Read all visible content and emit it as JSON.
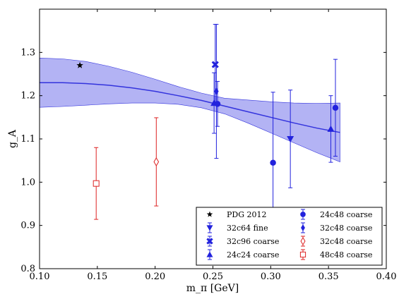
{
  "chart_data": {
    "type": "scatter",
    "xlabel": "m_π [GeV]",
    "ylabel": "g_A",
    "xlim": [
      0.1,
      0.4
    ],
    "ylim": [
      0.8,
      1.4
    ],
    "xticks": [
      "0.10",
      "0.15",
      "0.20",
      "0.25",
      "0.30",
      "0.35",
      "0.40"
    ],
    "yticks": [
      "0.8",
      "0.9",
      "1.0",
      "1.1",
      "1.2",
      "1.3"
    ],
    "grid": false,
    "legend_position": "bottom-right",
    "fit": {
      "x": [
        0.1,
        0.12,
        0.14,
        0.16,
        0.18,
        0.2,
        0.22,
        0.24,
        0.26,
        0.28,
        0.3,
        0.32,
        0.34,
        0.36
      ],
      "center": [
        1.23,
        1.23,
        1.228,
        1.224,
        1.218,
        1.21,
        1.2,
        1.189,
        1.176,
        1.163,
        1.15,
        1.137,
        1.125,
        1.115
      ],
      "lower": [
        1.173,
        1.175,
        1.178,
        1.181,
        1.183,
        1.183,
        1.18,
        1.172,
        1.158,
        1.137,
        1.114,
        1.091,
        1.068,
        1.047
      ],
      "upper": [
        1.287,
        1.285,
        1.279,
        1.268,
        1.254,
        1.238,
        1.221,
        1.206,
        1.194,
        1.19,
        1.186,
        1.183,
        1.182,
        1.183
      ],
      "color": "#3333dd",
      "band_color": "#9a9af0"
    },
    "series": [
      {
        "name": "PDG 2012",
        "marker": "star",
        "color": "#000000",
        "points": [
          {
            "x": 0.1349,
            "y": 1.2701,
            "yerr": 0
          }
        ]
      },
      {
        "name": "32c64 fine",
        "marker": "triangle-down",
        "color": "#2222dd",
        "points": [
          {
            "x": 0.317,
            "y": 1.1,
            "yerr": 0.113
          }
        ]
      },
      {
        "name": "32c96 coarse",
        "marker": "x",
        "color": "#2222dd",
        "points": [
          {
            "x": 0.252,
            "y": 1.272,
            "yerr": 0.093
          }
        ]
      },
      {
        "name": "24c24 coarse",
        "marker": "triangle-up",
        "color": "#2222dd",
        "points": [
          {
            "x": 0.251,
            "y": 1.183,
            "yerr": 0.07
          },
          {
            "x": 0.352,
            "y": 1.123,
            "yerr": 0.077
          }
        ]
      },
      {
        "name": "24c48 coarse",
        "marker": "circle",
        "color": "#2222dd",
        "points": [
          {
            "x": 0.254,
            "y": 1.181,
            "yerr": 0.052
          },
          {
            "x": 0.302,
            "y": 1.045,
            "yerr": 0.163
          },
          {
            "x": 0.356,
            "y": 1.172,
            "yerr": 0.112
          }
        ]
      },
      {
        "name": "32c48 coarse",
        "marker": "diamond",
        "color": "#2222dd",
        "points": [
          {
            "x": 0.253,
            "y": 1.21,
            "yerr": 0.155
          }
        ]
      },
      {
        "name": "32c48 coarse",
        "marker": "diamond-open",
        "color": "#dd2222",
        "points": [
          {
            "x": 0.201,
            "y": 1.047,
            "yerr": 0.102
          }
        ]
      },
      {
        "name": "48c48 coarse",
        "marker": "square-open",
        "color": "#dd2222",
        "points": [
          {
            "x": 0.149,
            "y": 0.997,
            "yerr": 0.083
          }
        ]
      }
    ]
  }
}
